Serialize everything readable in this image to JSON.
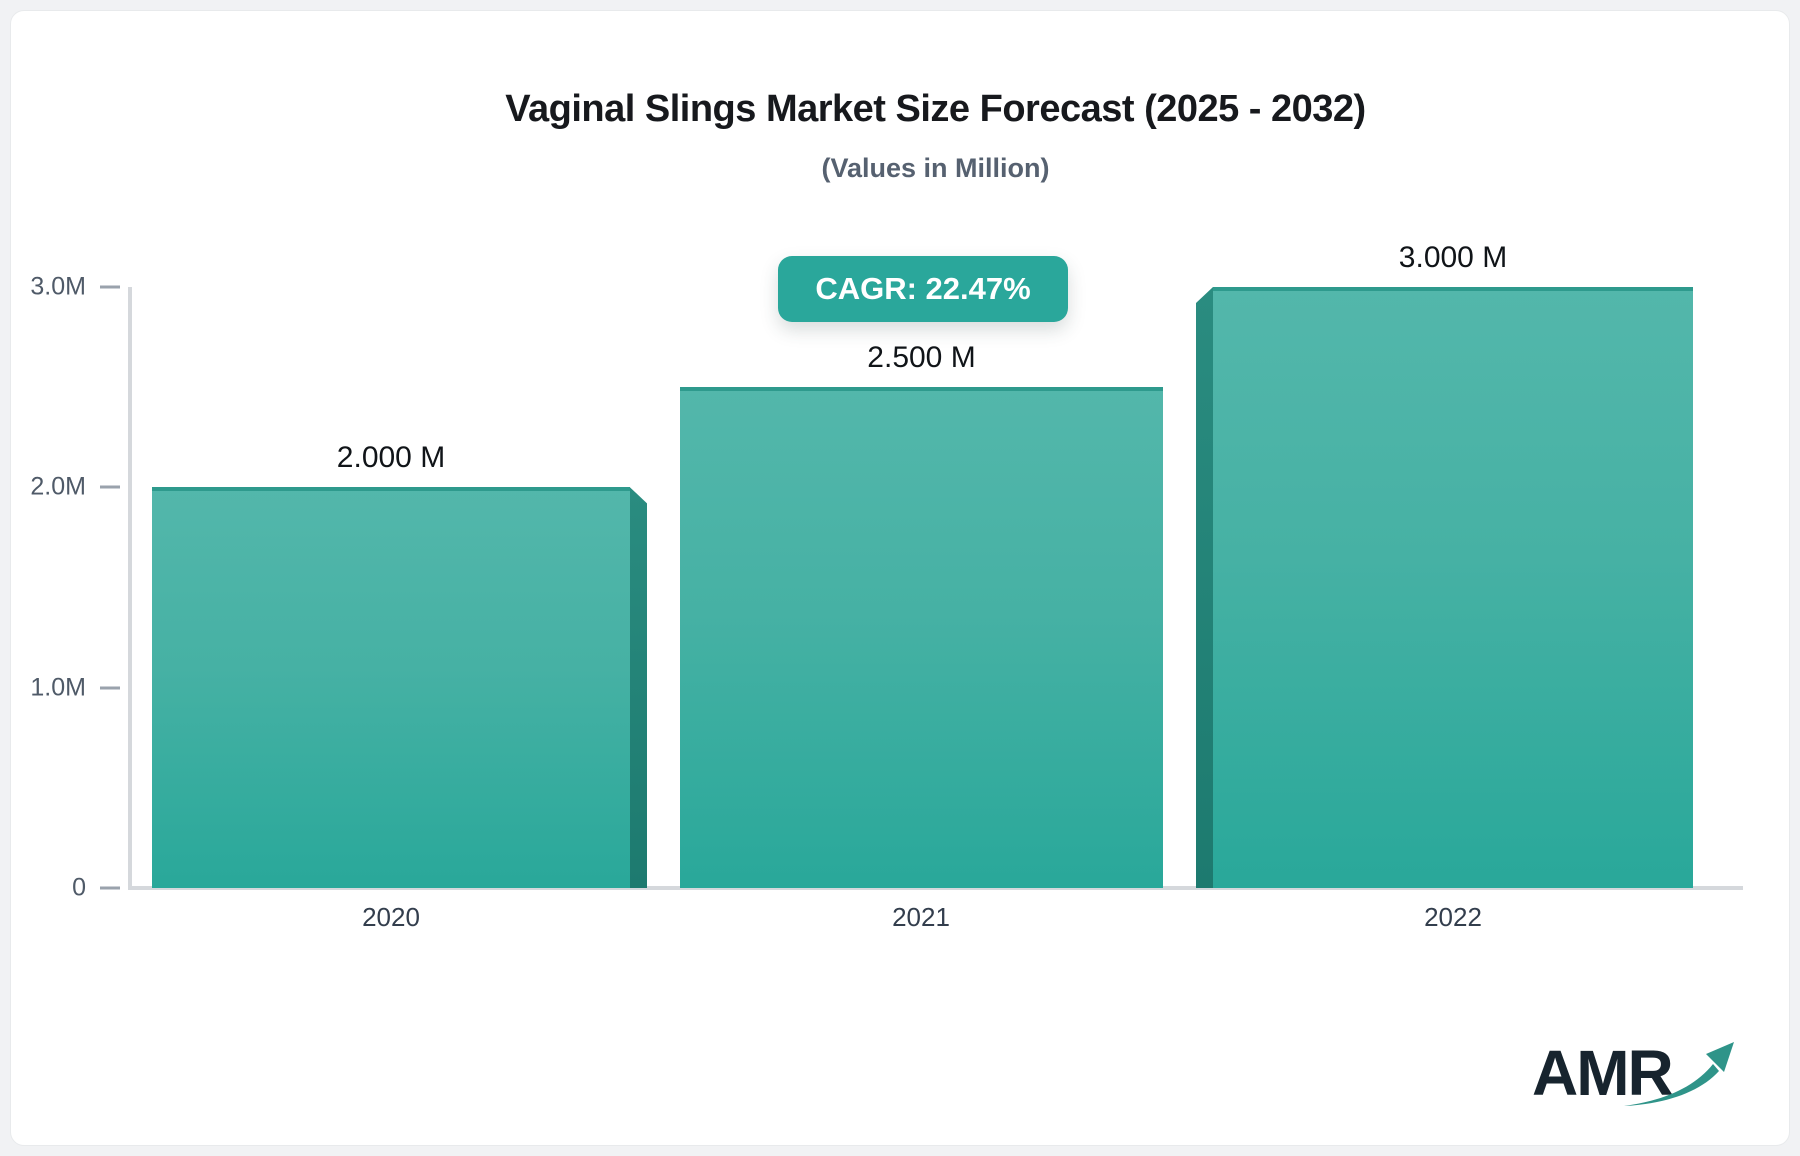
{
  "header": {
    "title": "Vaginal Slings Market Size Forecast (2025 - 2032)",
    "subtitle": "(Values in Million)"
  },
  "badge": {
    "label": "CAGR: 22.47%"
  },
  "chart_data": {
    "type": "bar",
    "title": "Vaginal Slings Market Size Forecast (2025 - 2032)",
    "subtitle": "(Values in Million)",
    "annotation": "CAGR: 22.47%",
    "unit": "Million",
    "categories": [
      "2020",
      "2021",
      "2022"
    ],
    "values": [
      2.0,
      2.5,
      3.0
    ],
    "bars": [
      {
        "category": "2020",
        "value": 2.0,
        "value_label": "2.000 M",
        "bevel": "right"
      },
      {
        "category": "2021",
        "value": 2.5,
        "value_label": "2.500 M",
        "bevel": "none"
      },
      {
        "category": "2022",
        "value": 3.0,
        "value_label": "3.000 M",
        "bevel": "left"
      }
    ],
    "y_ticks": [
      {
        "label": "3.0M",
        "value": 3
      },
      {
        "label": "2.0M",
        "value": 2
      },
      {
        "label": "1.0M",
        "value": 1
      },
      {
        "label": "0",
        "value": 0
      }
    ],
    "ylim": [
      0,
      3
    ],
    "grid": false,
    "legend_position": "none",
    "colors": {
      "bar_gradient_top": "#53b7ab",
      "bar_gradient_bottom": "#29a89a",
      "bar_top_edge": "#2e9a8d",
      "bar_side_3d": "#1e7c71",
      "badge_bg": "#2aa79b",
      "badge_text": "#ffffff",
      "axis_line": "#d5d8dc",
      "tick_dash": "#9aa2ac",
      "tick_text": "#4f5a68",
      "category_text": "#333e4d",
      "value_text": "#101418"
    }
  },
  "logo": {
    "text": "AMR"
  }
}
